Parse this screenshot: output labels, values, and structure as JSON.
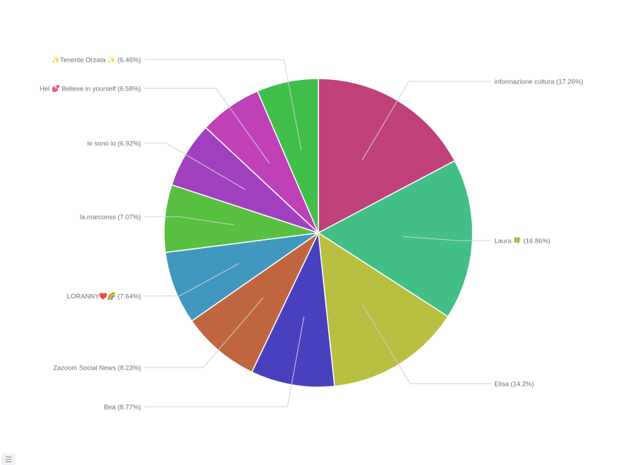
{
  "chart_data": {
    "type": "pie",
    "title": "",
    "slices": [
      {
        "label": "informazione cultura",
        "value": 17.26,
        "display": "informazione cultura (17.26%)",
        "color": "#C0407A"
      },
      {
        "label": "Laura 🍀",
        "value": 16.86,
        "display": "Laura 🍀 (16.86%)",
        "color": "#41BF87"
      },
      {
        "label": "Elisa",
        "value": 14.2,
        "display": "Elisa (14.2%)",
        "color": "#B9BF40"
      },
      {
        "label": "Bea",
        "value": 8.77,
        "display": "Bea (8.77%)",
        "color": "#4840BF"
      },
      {
        "label": "Zazoom Social News",
        "value": 8.23,
        "display": "Zazoom Social News (8.23%)",
        "color": "#BF6640"
      },
      {
        "label": "LORANNY❤️‍🔥🌈",
        "value": 7.64,
        "display": "LORANNY❤️🌈 (7.64%)",
        "color": "#4098BF"
      },
      {
        "label": "la.marconss",
        "value": 7.07,
        "display": "la.marconss (7.07%)",
        "color": "#58BF40"
      },
      {
        "label": "io sono io",
        "value": 6.92,
        "display": "io sono io (6.92%)",
        "color": "#A040BF"
      },
      {
        "label": "Hel 💕 Believe in yourself",
        "value": 6.58,
        "display": "Hel 💕 Believe in yourself (6.58%)",
        "color": "#BF40B7"
      },
      {
        "label": "✨Tenente Orzata ✨",
        "value": 6.46,
        "display": "✨Tenente Orzata ✨ (6.46%)",
        "color": "#40BF4A"
      }
    ]
  },
  "legend_toggle_icon": "list-icon"
}
